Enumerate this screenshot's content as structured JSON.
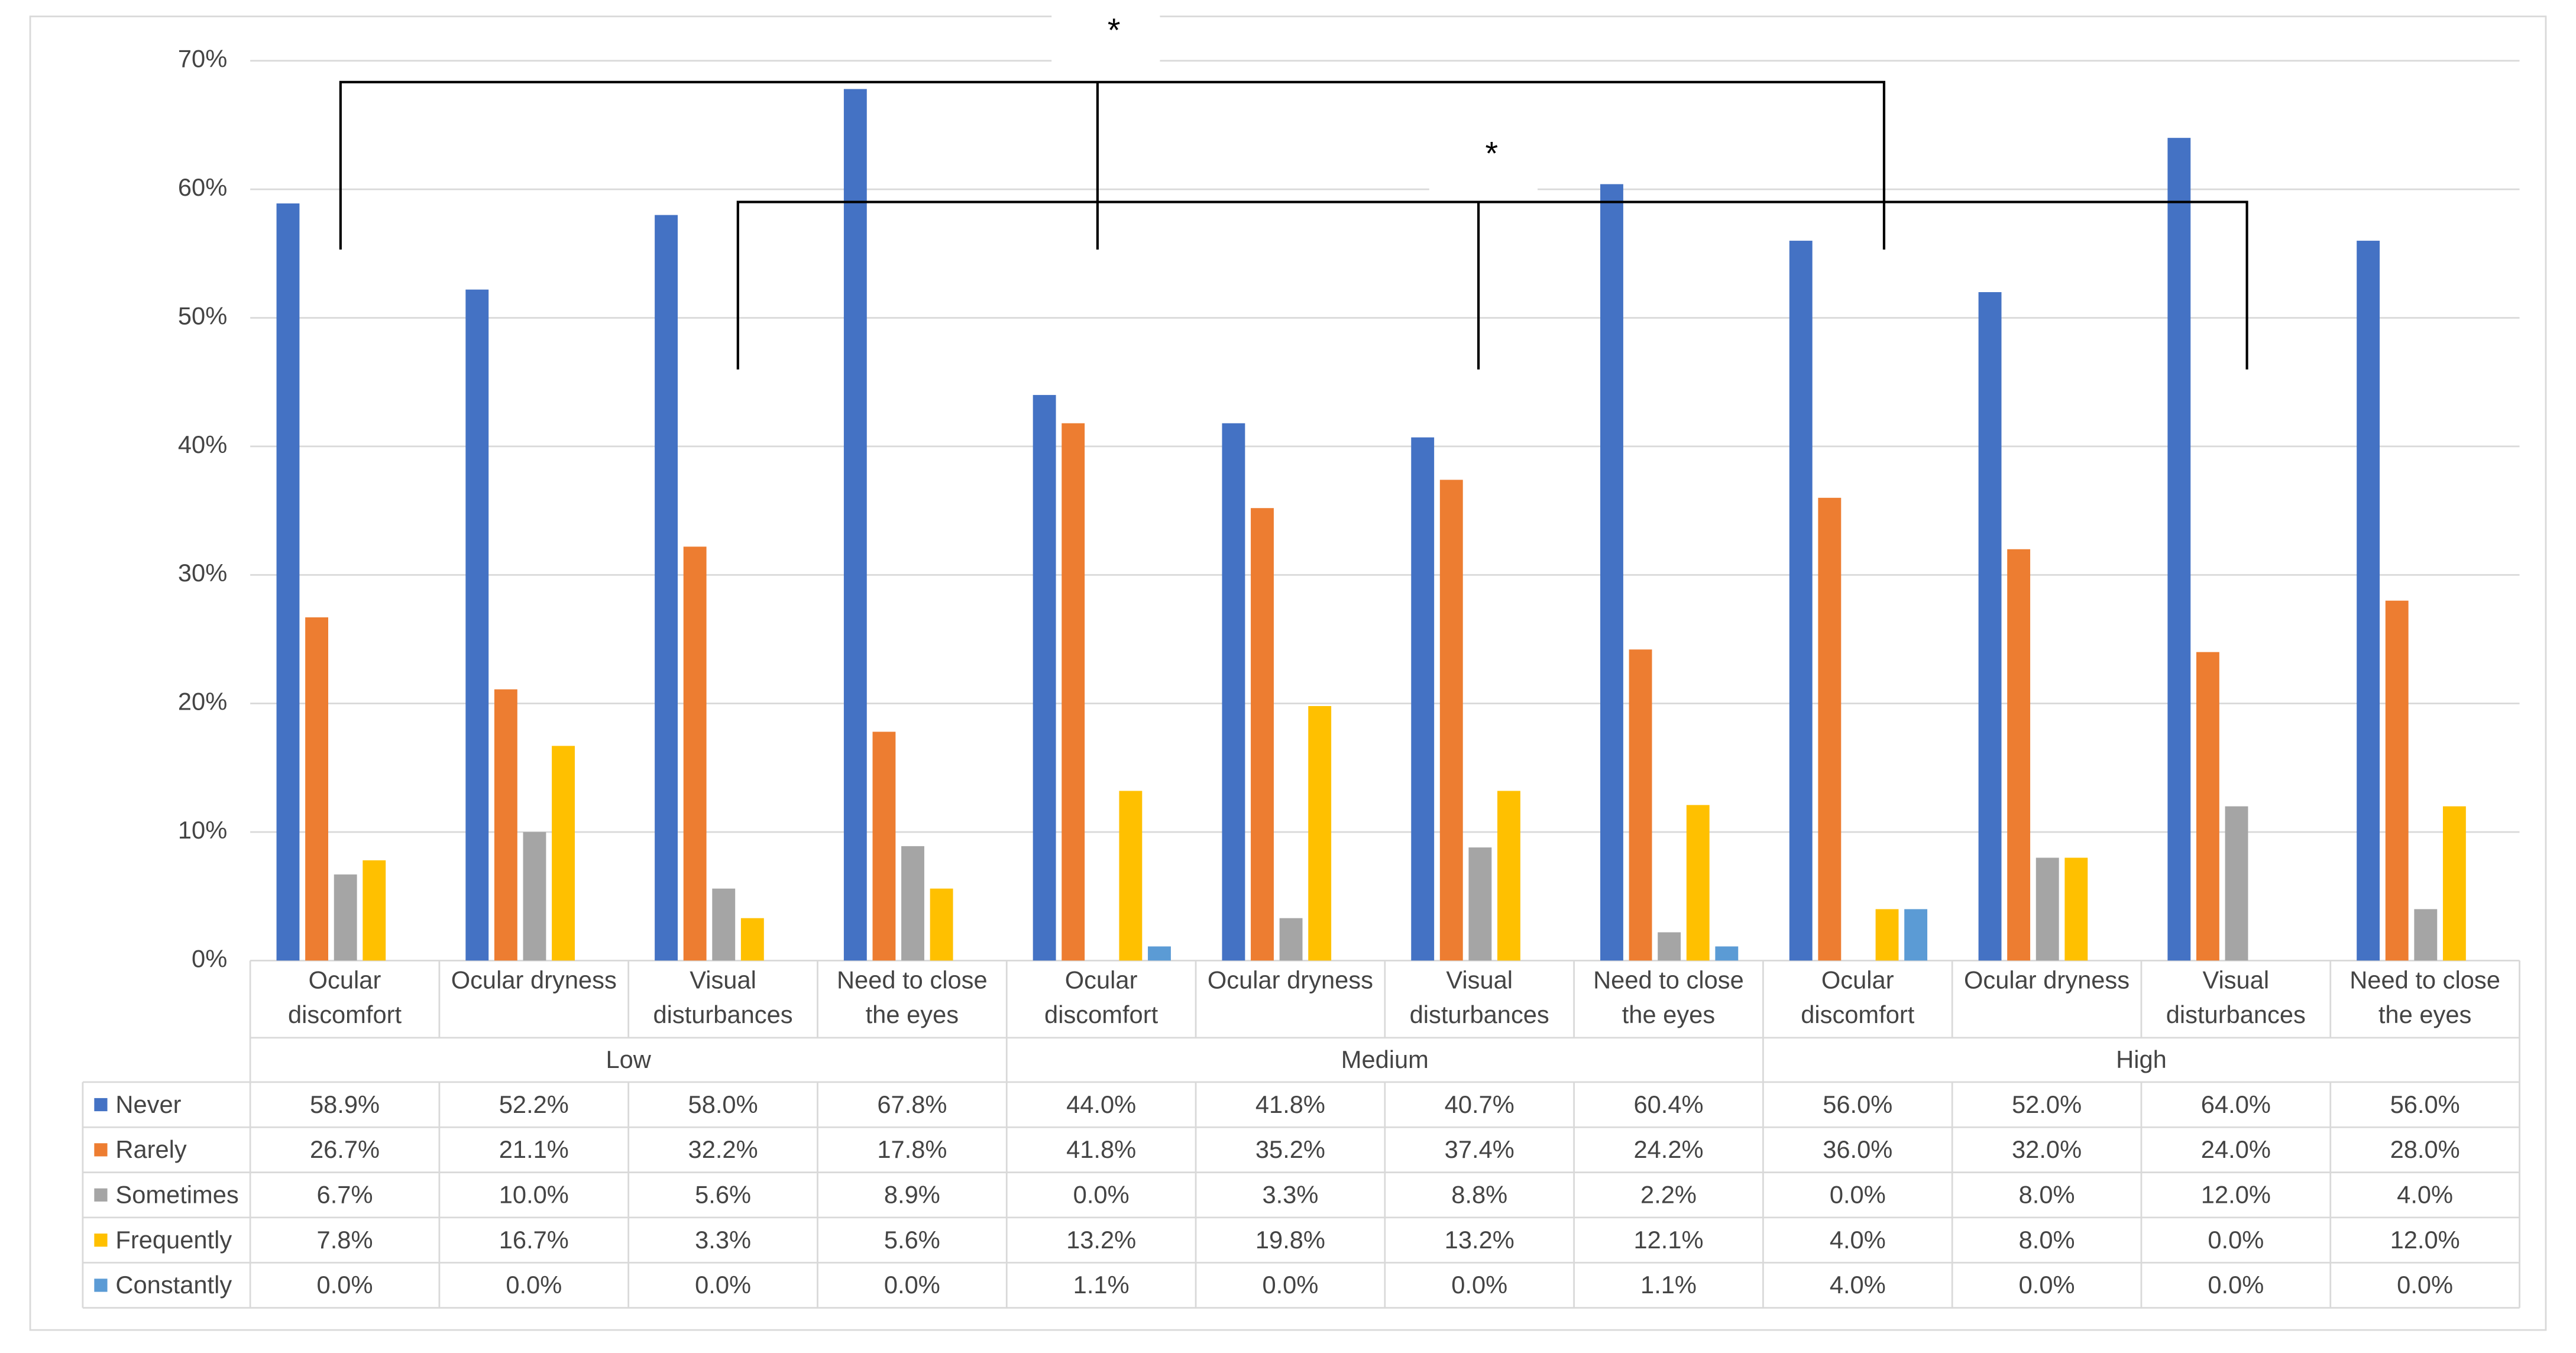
{
  "chart_data": {
    "type": "bar",
    "categories": [
      "Ocular discomfort",
      "Ocular dryness",
      "Visual disturbances",
      "Need to close the eyes",
      "Ocular discomfort",
      "Ocular dryness",
      "Visual disturbances",
      "Need to close the eyes",
      "Ocular discomfort",
      "Ocular dryness",
      "Visual disturbances",
      "Need to close the eyes"
    ],
    "groups": [
      "Low",
      "Medium",
      "High"
    ],
    "series": [
      {
        "name": "Never",
        "color": "#4472c4",
        "values": [
          58.9,
          52.2,
          58.0,
          67.8,
          44.0,
          41.8,
          40.7,
          60.4,
          56.0,
          52.0,
          64.0,
          56.0
        ],
        "value_labels": [
          "58.9%",
          "52.2%",
          "58.0%",
          "67.8%",
          "44.0%",
          "41.8%",
          "40.7%",
          "60.4%",
          "56.0%",
          "52.0%",
          "64.0%",
          "56.0%"
        ]
      },
      {
        "name": "Rarely",
        "color": "#ed7d31",
        "values": [
          26.7,
          21.1,
          32.2,
          17.8,
          41.8,
          35.2,
          37.4,
          24.2,
          36.0,
          32.0,
          24.0,
          28.0
        ],
        "value_labels": [
          "26.7%",
          "21.1%",
          "32.2%",
          "17.8%",
          "41.8%",
          "35.2%",
          "37.4%",
          "24.2%",
          "36.0%",
          "32.0%",
          "24.0%",
          "28.0%"
        ]
      },
      {
        "name": "Sometimes",
        "color": "#a5a5a5",
        "values": [
          6.7,
          10.0,
          5.6,
          8.9,
          0.0,
          3.3,
          8.8,
          2.2,
          0.0,
          8.0,
          12.0,
          4.0
        ],
        "value_labels": [
          "6.7%",
          "10.0%",
          "5.6%",
          "8.9%",
          "0.0%",
          "3.3%",
          "8.8%",
          "2.2%",
          "0.0%",
          "8.0%",
          "12.0%",
          "4.0%"
        ]
      },
      {
        "name": "Frequently",
        "color": "#ffc000",
        "values": [
          7.8,
          16.7,
          3.3,
          5.6,
          13.2,
          19.8,
          13.2,
          12.1,
          4.0,
          8.0,
          0.0,
          12.0
        ],
        "value_labels": [
          "7.8%",
          "16.7%",
          "3.3%",
          "5.6%",
          "13.2%",
          "19.8%",
          "13.2%",
          "12.1%",
          "4.0%",
          "8.0%",
          "0.0%",
          "12.0%"
        ]
      },
      {
        "name": "Constantly",
        "color": "#5b9bd5",
        "values": [
          0.0,
          0.0,
          0.0,
          0.0,
          1.1,
          0.0,
          0.0,
          1.1,
          4.0,
          0.0,
          0.0,
          0.0
        ],
        "value_labels": [
          "0.0%",
          "0.0%",
          "0.0%",
          "0.0%",
          "1.1%",
          "0.0%",
          "0.0%",
          "1.1%",
          "4.0%",
          "0.0%",
          "0.0%",
          "0.0%"
        ]
      }
    ],
    "ylim": [
      0,
      70
    ],
    "yticks": [
      {
        "value": 0,
        "label": "0%"
      },
      {
        "value": 10,
        "label": "10%"
      },
      {
        "value": 20,
        "label": "20%"
      },
      {
        "value": 30,
        "label": "30%"
      },
      {
        "value": 40,
        "label": "40%"
      },
      {
        "value": 50,
        "label": "50%"
      },
      {
        "value": 60,
        "label": "60%"
      },
      {
        "value": 70,
        "label": "70%"
      }
    ],
    "grid": true,
    "annotations": [
      "*",
      "*"
    ]
  }
}
